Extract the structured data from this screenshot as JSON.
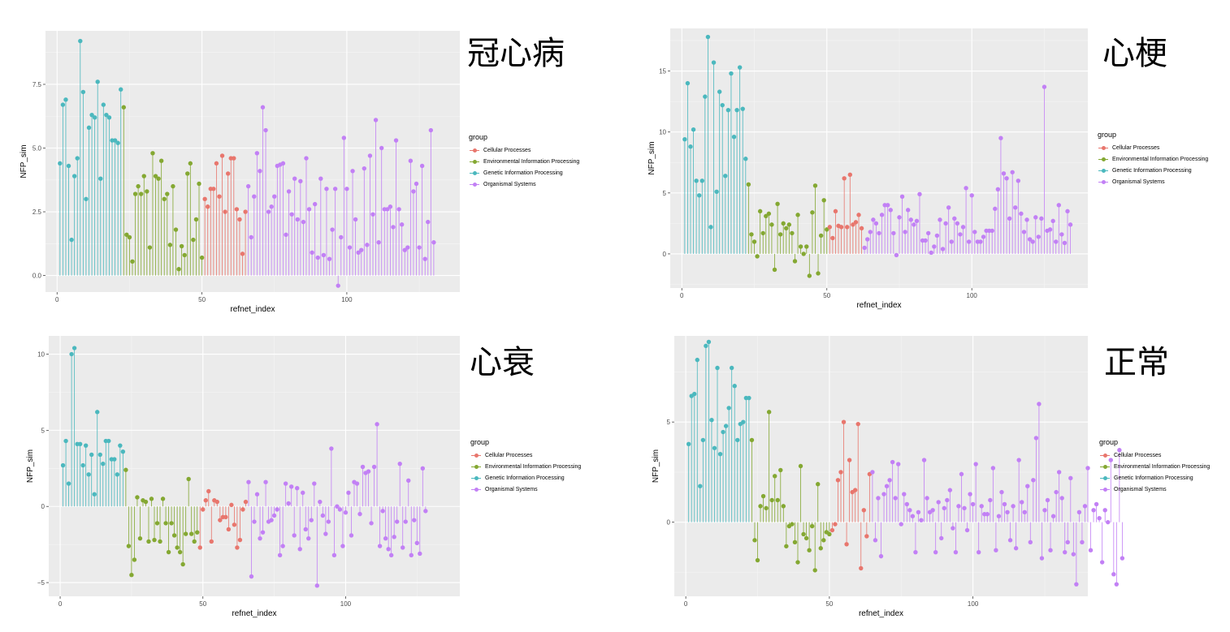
{
  "colors": {
    "Cellular Processes": "#e8766d",
    "Environmental Information Processing": "#84a832",
    "Genetic Information Processing": "#4bb8be",
    "Organismal Systems": "#c280f5"
  },
  "legend": {
    "title": "group",
    "items": [
      "Cellular Processes",
      "Environmental Information Processing",
      "Genetic Information Processing",
      "Organismal Systems"
    ]
  },
  "chart_data": [
    {
      "type": "lollipop",
      "title": "冠心病",
      "xlabel": "refnet_index",
      "ylabel": "NFP_sim",
      "xlim": [
        -4,
        139
      ],
      "ylim": [
        -0.65,
        9.6
      ],
      "xticks": [
        0,
        50,
        100
      ],
      "xtick_labels": [
        "0",
        "50",
        "100"
      ],
      "yticks": [
        0,
        2.5,
        5,
        7.5
      ],
      "ytick_labels": [
        "0.0",
        "2.5",
        "5.0",
        "7.5"
      ],
      "grid": true,
      "legend_position": "right",
      "series": [
        {
          "name": "Genetic Information Processing",
          "values": [
            4.4,
            6.7,
            6.9,
            4.3,
            1.4,
            3.9,
            4.6,
            9.2,
            7.2,
            3.0,
            5.8,
            6.3,
            6.2,
            7.6,
            3.8,
            6.7,
            6.3,
            6.2,
            5.3,
            5.3,
            5.2,
            7.3
          ]
        },
        {
          "name": "Environmental Information Processing",
          "values": [
            6.6,
            1.6,
            1.5,
            0.55,
            3.2,
            3.5,
            3.2,
            3.9,
            3.3,
            1.1,
            4.8,
            3.9,
            3.8,
            4.5,
            3.0,
            3.2,
            1.2,
            3.5,
            1.8,
            0.25,
            1.15,
            0.8,
            4.0,
            4.4,
            1.4,
            2.2,
            3.6,
            0.7
          ]
        },
        {
          "name": "Cellular Processes",
          "values": [
            3.0,
            2.7,
            3.4,
            3.4,
            4.4,
            3.1,
            4.7,
            2.5,
            4.0,
            4.6,
            4.6,
            2.6,
            2.2,
            0.85,
            2.5
          ]
        },
        {
          "name": "Organismal Systems",
          "values": [
            3.5,
            1.5,
            3.1,
            4.8,
            4.1,
            6.6,
            5.7,
            2.5,
            2.7,
            3.1,
            4.3,
            4.35,
            4.4,
            1.6,
            3.3,
            2.4,
            3.8,
            2.2,
            3.7,
            2.1,
            4.6,
            2.6,
            0.9,
            2.8,
            0.7,
            3.8,
            0.8,
            3.4,
            0.65,
            1.8,
            3.4,
            -0.4,
            1.5,
            5.4,
            3.4,
            1.1,
            4.1,
            2.2,
            0.9,
            1.0,
            4.2,
            1.2,
            4.7,
            2.4,
            6.1,
            1.3,
            5.0,
            2.6,
            2.6,
            2.7,
            1.9,
            5.3,
            2.6,
            2.0,
            1.0,
            1.1,
            4.5,
            3.3,
            3.6,
            1.1,
            4.3,
            0.65,
            2.1,
            5.7,
            1.3
          ]
        }
      ]
    },
    {
      "type": "lollipop",
      "title": "心梗",
      "xlabel": "refnet_index",
      "ylabel": "NFP_sim",
      "xlim": [
        -4,
        140
      ],
      "ylim": [
        -2.8,
        18.5
      ],
      "xticks": [
        0,
        50,
        100
      ],
      "xtick_labels": [
        "0",
        "50",
        "100"
      ],
      "yticks": [
        0,
        5,
        10,
        15
      ],
      "ytick_labels": [
        "0",
        "5",
        "10",
        "15"
      ],
      "grid": true,
      "legend_position": "right",
      "series": [
        {
          "name": "Genetic Information Processing",
          "values": [
            9.4,
            14.0,
            8.8,
            10.2,
            6.0,
            4.8,
            6.0,
            12.9,
            17.8,
            2.2,
            15.7,
            5.1,
            13.3,
            12.2,
            6.4,
            11.8,
            14.8,
            9.6,
            11.8,
            15.3,
            11.9,
            7.8
          ]
        },
        {
          "name": "Environmental Information Processing",
          "values": [
            5.7,
            1.6,
            1.0,
            -0.2,
            3.5,
            1.7,
            3.1,
            3.3,
            2.4,
            -1.3,
            4.1,
            1.6,
            2.5,
            2.1,
            2.4,
            1.7,
            -0.6,
            3.2,
            0.6,
            0.0,
            0.6,
            -1.8,
            3.4,
            5.6,
            -1.6,
            1.5,
            4.4,
            2.0
          ]
        },
        {
          "name": "Cellular Processes",
          "values": [
            2.2,
            1.3,
            3.5,
            2.3,
            2.2,
            6.2,
            2.2,
            6.5,
            2.4,
            2.6,
            3.2,
            2.1
          ]
        },
        {
          "name": "Organismal Systems",
          "values": [
            0.5,
            1.2,
            1.8,
            2.8,
            2.5,
            1.7,
            3.2,
            4.0,
            4.0,
            3.6,
            1.7,
            -0.1,
            3.0,
            4.7,
            1.8,
            3.6,
            2.8,
            2.4,
            2.7,
            4.9,
            1.1,
            1.1,
            1.7,
            0.1,
            0.6,
            1.5,
            2.8,
            0.4,
            2.5,
            3.8,
            1.0,
            2.9,
            2.5,
            1.6,
            2.2,
            5.4,
            1.0,
            4.8,
            1.8,
            1.0,
            1.0,
            1.4,
            1.9,
            1.9,
            1.9,
            3.7,
            5.3,
            9.5,
            6.6,
            6.2,
            2.9,
            6.7,
            3.8,
            6.0,
            3.3,
            1.8,
            2.8,
            1.2,
            1.0,
            3.0,
            1.4,
            2.9,
            13.7,
            1.9,
            2.0,
            2.7,
            1.0,
            4.0,
            1.6,
            0.9,
            3.5,
            2.4
          ]
        }
      ]
    },
    {
      "type": "lollipop",
      "title": "心衰",
      "xlabel": "refnet_index",
      "ylabel": "NFP_sim",
      "xlim": [
        -4,
        140
      ],
      "ylim": [
        -5.9,
        11.2
      ],
      "xticks": [
        0,
        50,
        100
      ],
      "xtick_labels": [
        "0",
        "50",
        "100"
      ],
      "yticks": [
        -5,
        0,
        5,
        10
      ],
      "ytick_labels": [
        "−5",
        "0",
        "5",
        "10"
      ],
      "grid": true,
      "legend_position": "right",
      "series": [
        {
          "name": "Genetic Information Processing",
          "values": [
            2.7,
            4.3,
            1.5,
            10.0,
            10.4,
            4.1,
            4.1,
            2.7,
            4.0,
            2.1,
            3.4,
            0.8,
            6.2,
            3.4,
            2.8,
            4.3,
            4.3,
            3.1,
            3.1,
            2.1,
            4.0,
            3.6
          ]
        },
        {
          "name": "Environmental Information Processing",
          "values": [
            2.4,
            -2.6,
            -4.5,
            -3.5,
            0.6,
            -2.1,
            0.4,
            0.3,
            -2.3,
            0.5,
            -2.2,
            -1.1,
            -2.3,
            0.5,
            -1.1,
            -3.0,
            -1.1,
            -1.9,
            -2.7,
            -3.0,
            -3.8,
            -1.8,
            1.8,
            -1.8,
            -2.3,
            -1.7
          ]
        },
        {
          "name": "Cellular Processes",
          "values": [
            -2.7,
            -0.2,
            0.4,
            1.0,
            -2.3,
            0.4,
            0.3,
            -0.9,
            -0.7,
            -0.7,
            -1.5,
            0.1,
            -1.2,
            -2.7,
            -2.2,
            -0.2,
            0.3
          ]
        },
        {
          "name": "Organismal Systems",
          "values": [
            1.6,
            -4.6,
            -1.0,
            0.8,
            -2.1,
            -1.7,
            1.6,
            -1.0,
            -0.9,
            -0.6,
            -0.2,
            -3.2,
            -2.6,
            1.5,
            0.2,
            1.3,
            -1.9,
            1.2,
            -2.8,
            0.9,
            -1.5,
            -2.1,
            -0.9,
            1.5,
            -5.2,
            0.3,
            -0.6,
            -1.8,
            -1.0,
            3.8,
            -3.2,
            0.0,
            -0.2,
            -2.6,
            -0.4,
            0.9,
            -1.9,
            1.6,
            1.5,
            -0.5,
            2.6,
            2.2,
            2.3,
            -1.1,
            2.6,
            5.4,
            -2.6,
            -0.3,
            -2.1,
            -2.8,
            -3.2,
            -2.0,
            -1.0,
            2.8,
            -2.7,
            -1.0,
            1.7,
            -3.2,
            -0.9,
            -2.4,
            -3.1,
            2.5,
            -0.3
          ]
        }
      ]
    },
    {
      "type": "lollipop",
      "title": "正常",
      "xlabel": "refnet_index",
      "ylabel": "NFP_sim",
      "xlim": [
        -4,
        140
      ],
      "ylim": [
        -3.7,
        9.3
      ],
      "xticks": [
        0,
        50,
        100
      ],
      "xtick_labels": [
        "0",
        "50",
        "100"
      ],
      "yticks": [
        0,
        5
      ],
      "ytick_labels": [
        "0",
        "5"
      ],
      "grid": true,
      "legend_position": "right",
      "series": [
        {
          "name": "Genetic Information Processing",
          "values": [
            3.9,
            6.3,
            6.4,
            8.1,
            1.8,
            4.1,
            8.8,
            9.0,
            5.1,
            3.7,
            7.7,
            3.4,
            4.5,
            4.8,
            5.7,
            7.7,
            6.8,
            4.1,
            4.9,
            5.0,
            6.2,
            6.2
          ]
        },
        {
          "name": "Environmental Information Processing",
          "values": [
            4.1,
            -0.9,
            -1.9,
            0.8,
            1.3,
            0.7,
            5.5,
            1.1,
            2.3,
            1.1,
            2.6,
            0.8,
            -1.2,
            -0.2,
            -0.1,
            -1.0,
            -2.0,
            2.8,
            -0.6,
            -0.8,
            -1.4,
            -0.2,
            -2.4,
            1.9,
            -1.3,
            -0.9,
            -0.5,
            -0.6
          ]
        },
        {
          "name": "Cellular Processes",
          "values": [
            -0.4,
            -0.1,
            2.1,
            2.5,
            5.0,
            -1.1,
            3.1,
            1.5,
            1.6,
            4.9,
            -2.3,
            0.6,
            -0.7,
            2.4
          ]
        },
        {
          "name": "Organismal Systems",
          "values": [
            2.5,
            -0.9,
            1.2,
            -1.7,
            1.4,
            1.8,
            2.1,
            3.0,
            1.2,
            2.9,
            -0.1,
            1.4,
            0.9,
            0.6,
            0.3,
            -1.5,
            0.5,
            0.1,
            3.1,
            1.2,
            0.5,
            0.6,
            -1.5,
            1.0,
            -0.8,
            0.7,
            1.1,
            1.6,
            -0.3,
            -1.5,
            0.8,
            2.4,
            0.7,
            -0.4,
            1.4,
            0.9,
            2.9,
            -1.5,
            0.8,
            0.4,
            0.4,
            1.1,
            2.7,
            -1.4,
            0.3,
            1.5,
            0.9,
            0.5,
            -0.9,
            0.8,
            -1.3,
            3.1,
            1.0,
            0.5,
            1.8,
            -1.0,
            2.1,
            4.2,
            5.9,
            -1.8,
            0.6,
            1.1,
            -1.4,
            0.3,
            1.5,
            2.5,
            1.2,
            -1.5,
            -1.0,
            2.2,
            -1.6,
            -3.1,
            0.5,
            -1.0,
            0.8,
            2.7,
            -1.4,
            0.6,
            0.9,
            0.2,
            -2.0,
            0.6,
            0.0,
            3.1,
            -2.6,
            -3.1,
            3.6,
            -1.8
          ]
        }
      ]
    }
  ]
}
